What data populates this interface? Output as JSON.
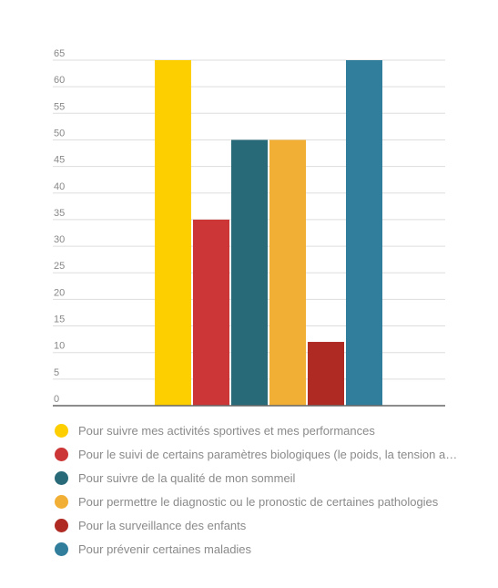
{
  "chart_data": {
    "type": "bar",
    "ylim": [
      0,
      65
    ],
    "yticks": [
      "0",
      "5",
      "10",
      "15",
      "20",
      "25",
      "30",
      "35",
      "40",
      "45",
      "50",
      "55",
      "60",
      "65"
    ],
    "grid": true,
    "legend_position": "bottom",
    "series": [
      {
        "name": "Pour suivre mes activités sportives et mes performances",
        "value": 65,
        "color": "#FDCF01"
      },
      {
        "name": "Pour le suivi de certains paramètres biologiques (le poids, la tension artér…",
        "value": 35,
        "color": "#CD3636"
      },
      {
        "name": "Pour suivre de la qualité de mon sommeil",
        "value": 50,
        "color": "#286A78"
      },
      {
        "name": "Pour permettre le diagnostic ou le pronostic de certaines pathologies",
        "value": 50,
        "color": "#F2AF35"
      },
      {
        "name": "Pour la surveillance des enfants",
        "value": 12,
        "color": "#AF2A23"
      },
      {
        "name": "Pour prévenir certaines maladies",
        "value": 65,
        "color": "#307D9C"
      }
    ]
  }
}
